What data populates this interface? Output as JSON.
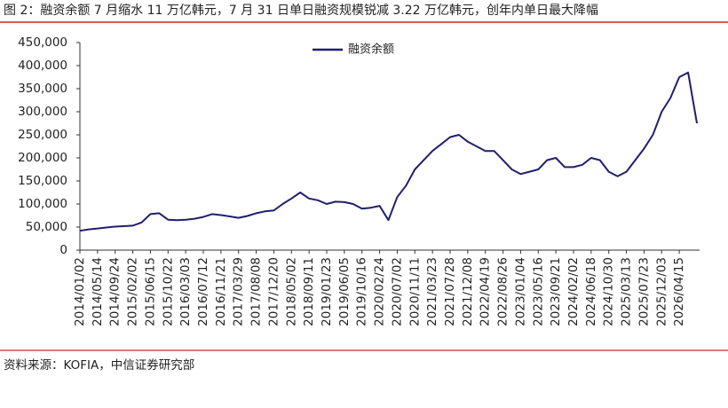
{
  "chart_data": {
    "type": "line",
    "title": "图 2：融资余额 7 月缩水 11 万亿韩元，7 月 31 日单日融资规模锐减 3.22 万亿韩元，创年内单日最大降幅",
    "source": "资料来源：KOFIA，中信证券研究部",
    "categories": [
      "2014/01/02",
      null,
      "2014/05/14",
      null,
      "2014/09/24",
      null,
      "2015/02/02",
      null,
      "2015/06/15",
      null,
      "2015/10/22",
      null,
      "2016/03/03",
      null,
      "2016/07/12",
      null,
      "2016/11/21",
      null,
      "2017/03/29",
      null,
      "2017/08/08",
      null,
      "2017/12/20",
      null,
      "2018/05/02",
      null,
      "2018/09/11",
      null,
      "2019/01/23",
      null,
      "2019/06/05",
      null,
      "2019/10/16",
      null,
      "2020/02/24",
      null,
      "2020/07/02",
      null,
      "2020/11/11",
      null,
      "2021/03/23",
      null,
      "2021/07/28",
      null,
      "2021/12/08",
      null,
      "2022/04/19",
      null,
      "2022/08/26",
      null,
      "2023/01/04",
      null,
      "2023/05/16",
      null,
      "2023/09/21",
      null,
      "2024/02/02",
      null,
      "2024/06/18",
      null,
      "2024/10/30",
      null,
      "2025/03/13",
      null,
      "2025/07/23",
      null,
      "2025/12/03",
      null,
      "2026/04/15",
      null,
      null
    ],
    "series": [
      {
        "name": "融资余额",
        "color": "#1f1f6e",
        "values": [
          42000,
          45000,
          47000,
          49000,
          51000,
          52000,
          53000,
          60000,
          78000,
          80000,
          66000,
          65000,
          66000,
          68000,
          72000,
          78000,
          76000,
          73000,
          70000,
          74000,
          80000,
          84000,
          86000,
          100000,
          112000,
          125000,
          112000,
          108000,
          100000,
          105000,
          104000,
          100000,
          90000,
          92000,
          96000,
          65000,
          115000,
          140000,
          175000,
          195000,
          215000,
          230000,
          245000,
          250000,
          235000,
          225000,
          215000,
          215000,
          195000,
          175000,
          165000,
          170000,
          175000,
          195000,
          200000,
          180000,
          180000,
          185000,
          200000,
          195000,
          170000,
          160000,
          170000,
          195000,
          220000,
          250000,
          300000,
          330000,
          375000,
          385000,
          275000
        ]
      }
    ],
    "ylim": [
      0,
      450000
    ],
    "yticks": [
      0,
      {
        "value": 50000,
        "label": "50,000"
      },
      {
        "value": 100000,
        "label": "100,000"
      },
      {
        "value": 150000,
        "label": "150,000"
      },
      {
        "value": 200000,
        "label": "200,000"
      },
      {
        "value": 250000,
        "label": "250,000"
      },
      {
        "value": 300000,
        "label": "300,000"
      },
      {
        "value": 350000,
        "label": "350,000"
      },
      {
        "value": 400000,
        "label": "400,000"
      },
      {
        "value": 450000,
        "label": "450,000"
      }
    ]
  }
}
